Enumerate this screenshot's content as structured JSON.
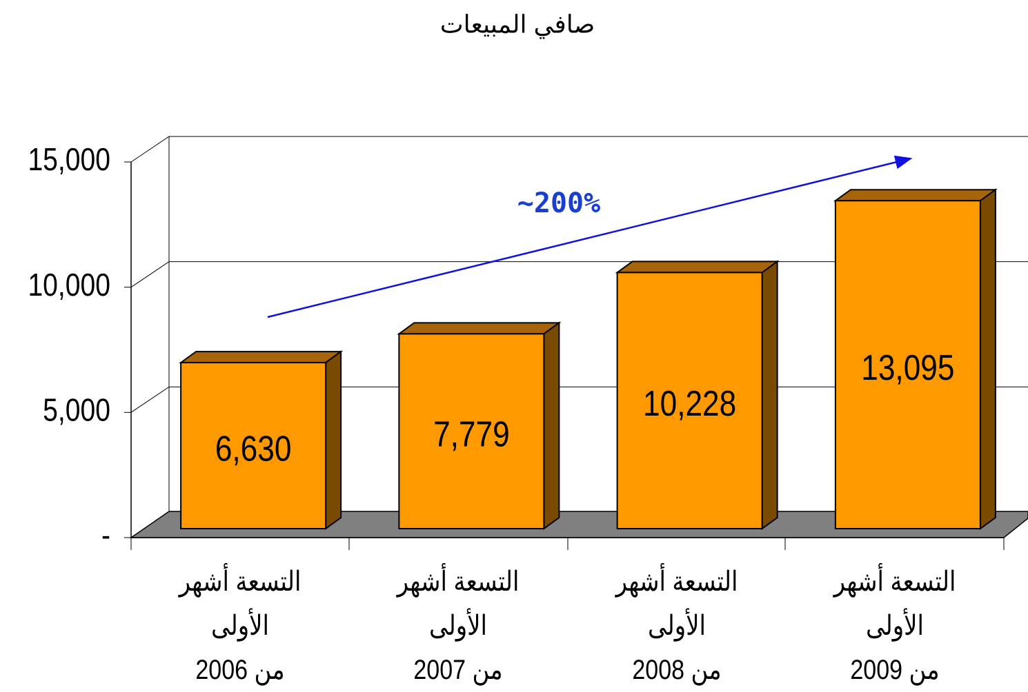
{
  "chart_data": {
    "type": "bar3d",
    "title": "صافي المبيعات",
    "categories": [
      "التسعة أشهر الأولى\nمن 2006",
      "التسعة أشهر الأولى\nمن 2007",
      "التسعة أشهر الأولى\nمن 2008",
      "التسعة أشهر الأولى\nمن 2009"
    ],
    "values": [
      6630,
      7779,
      10228,
      13095
    ],
    "value_labels": [
      "6,630",
      "7,779",
      "10,228",
      "13,095"
    ],
    "color": "#ff9900",
    "ylim": [
      0,
      15000
    ],
    "yticks": [
      {
        "value": 0,
        "label": "-"
      },
      {
        "value": 5000,
        "label": "5,000"
      },
      {
        "value": 10000,
        "label": "10,000"
      },
      {
        "value": 15000,
        "label": "15,000"
      }
    ],
    "grid": true,
    "annotation": "~200%"
  }
}
